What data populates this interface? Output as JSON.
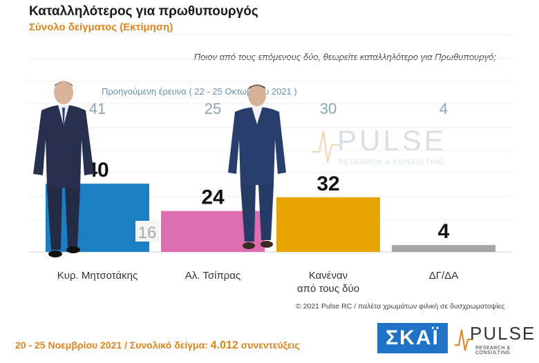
{
  "header": {
    "title": "Καταλληλότερος για πρωθυπουργός",
    "subtitle": "Σύνολο δείγματος   (Εκτίμηση)",
    "question": "Ποιον από τους επόμενους δύο, θεωρείτε καταλληλότερο για Πρωθυπουργό;",
    "previous_survey_label": "Προηγούμενη έρευνα  ( 22 - 25 Οκτωβρίου 2021 )"
  },
  "chart_data": {
    "type": "bar",
    "categories": [
      "Κυρ. Μητσοτάκης",
      "Αλ. Τσίπρας",
      "Κανέναν\nαπό τους δύο",
      "ΔΓ/ΔΑ"
    ],
    "series": [
      {
        "name": "Νοέμβριος 2021",
        "values": [
          40,
          24,
          32,
          4
        ]
      },
      {
        "name": "Προηγούμενη έρευνα",
        "values": [
          41,
          25,
          30,
          4
        ]
      }
    ],
    "colors": [
      "#1b7fc4",
      "#de6cb1",
      "#e8a400",
      "#a6a6a6"
    ],
    "extra_annotation": {
      "category_index": 0,
      "value": "16"
    },
    "ylim": [
      0,
      45
    ],
    "grid": true
  },
  "credit": "© 2021 Pulse RC  /  παλέτα χρωμάτων φιλική σε δυσχρωματοψίες",
  "footer": {
    "dates": "20 - 25  Νοεμβρίου 2021  /  Συνολικό δείγμα:  ",
    "sample": "4.012",
    "suffix": " συνεντεύξεις"
  },
  "logos": {
    "skai": "ΣΚΑΪ",
    "pulse": "PULSE",
    "pulse_sub": "RESEARCH & CONSULTING"
  }
}
